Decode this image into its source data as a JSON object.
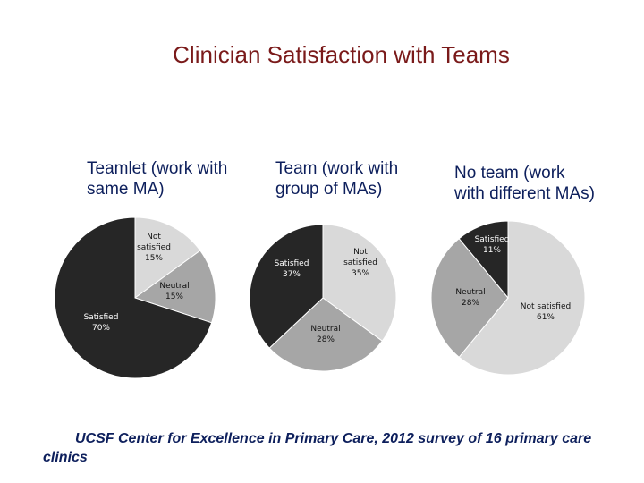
{
  "page": {
    "title": "Clinician Satisfaction with Teams",
    "footer": "UCSF Center for Excellence in Primary Care, 2012 survey of 16 primary care clinics"
  },
  "colors": {
    "title": "#7a1a1a",
    "text": "#0d1f5c",
    "not_satisfied": "#d9d9d9",
    "neutral": "#a6a6a6",
    "satisfied": "#262626"
  },
  "chart_data": [
    {
      "type": "pie",
      "title": "Teamlet (work with same MA)",
      "slices": [
        {
          "name": "Not satisfied",
          "value": 15,
          "label_lines": [
            "Not",
            "satisfied",
            "15%"
          ]
        },
        {
          "name": "Neutral",
          "value": 15,
          "label_lines": [
            "Neutral",
            "15%"
          ]
        },
        {
          "name": "Satisfied",
          "value": 70,
          "label_lines": [
            "Satisfied",
            "70%"
          ]
        }
      ]
    },
    {
      "type": "pie",
      "title": "Team (work with group of MAs)",
      "slices": [
        {
          "name": "Not satisfied",
          "value": 35,
          "label_lines": [
            "Not",
            "satisfied",
            "35%"
          ]
        },
        {
          "name": "Neutral",
          "value": 28,
          "label_lines": [
            "Neutral",
            "28%"
          ]
        },
        {
          "name": "Satisfied",
          "value": 37,
          "label_lines": [
            "Satisfied",
            "37%"
          ]
        }
      ]
    },
    {
      "type": "pie",
      "title": "No team (work with different MAs)",
      "slices": [
        {
          "name": "Not satisfied",
          "value": 61,
          "label_lines": [
            "Not satisfied",
            "61%"
          ]
        },
        {
          "name": "Neutral",
          "value": 28,
          "label_lines": [
            "Neutral",
            "28%"
          ]
        },
        {
          "name": "Satisfied",
          "value": 11,
          "label_lines": [
            "Satisfied",
            "11%"
          ]
        }
      ]
    }
  ]
}
